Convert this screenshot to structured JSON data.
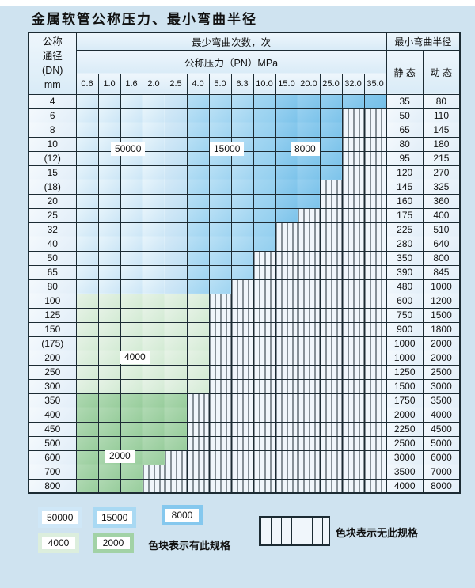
{
  "title": "金属软管公称压力、最小弯曲半径",
  "table": {
    "corner_header_lines": [
      "公称",
      "通径",
      "(DN)",
      "mm"
    ],
    "bend_cycles_header": "最少弯曲次数，次",
    "pressure_header": "公称压力（PN）MPa",
    "radius_header": "最小弯曲半径",
    "static_header": "静 态",
    "dynamic_header": "动 态"
  },
  "zone_labels": [
    "50000",
    "15000",
    "8000",
    "4000",
    "2000"
  ],
  "legend": {
    "has_spec_label": "色块表示有此规格",
    "no_spec_label": "色块表示无此规格",
    "chips": [
      {
        "value": "50000",
        "zone": "z50000"
      },
      {
        "value": "15000",
        "zone": "z15000"
      },
      {
        "value": "8000",
        "zone": "z8000"
      },
      {
        "value": "4000",
        "zone": "z4000"
      },
      {
        "value": "2000",
        "zone": "z2000"
      }
    ]
  },
  "colors": {
    "page_bg": "#cfe3f0",
    "grid": "#1c2b33",
    "hatch_bg": "#f0f6fb",
    "blue50000": "#cfe7f7",
    "blue15000": "#a9d9f3",
    "blue8000": "#85c8ee",
    "green4000": "#dceedd",
    "green2000": "#a2d2a6"
  },
  "chart_data": {
    "type": "table",
    "title": "金属软管公称压力、最小弯曲半径",
    "pressure_columns": [
      "0.6",
      "1.0",
      "1.6",
      "2.0",
      "2.5",
      "4.0",
      "5.0",
      "6.3",
      "10.0",
      "15.0",
      "20.0",
      "25.0",
      "32.0",
      "35.0"
    ],
    "blue_zones_by_pn": {
      "50000": [
        "0.6",
        "2.5"
      ],
      "15000": [
        "4.0",
        "10.0"
      ],
      "8000": [
        "15.0",
        "35.0"
      ]
    },
    "band_cycle_values": {
      "blue": "50000/15000/8000 by PN",
      "green4000": "4000",
      "green2000": "2000"
    },
    "rows": [
      {
        "dn": "4",
        "max_pn": "35.0",
        "band": "blue",
        "static": "35",
        "dynamic": "80"
      },
      {
        "dn": "6",
        "max_pn": "25.0",
        "band": "blue",
        "static": "50",
        "dynamic": "110"
      },
      {
        "dn": "8",
        "max_pn": "25.0",
        "band": "blue",
        "static": "65",
        "dynamic": "145"
      },
      {
        "dn": "10",
        "max_pn": "25.0",
        "band": "blue",
        "static": "80",
        "dynamic": "180"
      },
      {
        "dn": "(12)",
        "max_pn": "25.0",
        "band": "blue",
        "static": "95",
        "dynamic": "215"
      },
      {
        "dn": "15",
        "max_pn": "25.0",
        "band": "blue",
        "static": "120",
        "dynamic": "270"
      },
      {
        "dn": "(18)",
        "max_pn": "20.0",
        "band": "blue",
        "static": "145",
        "dynamic": "325"
      },
      {
        "dn": "20",
        "max_pn": "20.0",
        "band": "blue",
        "static": "160",
        "dynamic": "360"
      },
      {
        "dn": "25",
        "max_pn": "15.0",
        "band": "blue",
        "static": "175",
        "dynamic": "400"
      },
      {
        "dn": "32",
        "max_pn": "10.0",
        "band": "blue",
        "static": "225",
        "dynamic": "510"
      },
      {
        "dn": "40",
        "max_pn": "10.0",
        "band": "blue",
        "static": "280",
        "dynamic": "640"
      },
      {
        "dn": "50",
        "max_pn": "6.3",
        "band": "blue",
        "static": "350",
        "dynamic": "800"
      },
      {
        "dn": "65",
        "max_pn": "6.3",
        "band": "blue",
        "static": "390",
        "dynamic": "845"
      },
      {
        "dn": "80",
        "max_pn": "5.0",
        "band": "blue",
        "static": "480",
        "dynamic": "1000"
      },
      {
        "dn": "100",
        "max_pn": "4.0",
        "band": "green4000",
        "static": "600",
        "dynamic": "1200"
      },
      {
        "dn": "125",
        "max_pn": "4.0",
        "band": "green4000",
        "static": "750",
        "dynamic": "1500"
      },
      {
        "dn": "150",
        "max_pn": "4.0",
        "band": "green4000",
        "static": "900",
        "dynamic": "1800"
      },
      {
        "dn": "(175)",
        "max_pn": "4.0",
        "band": "green4000",
        "static": "1000",
        "dynamic": "2000"
      },
      {
        "dn": "200",
        "max_pn": "4.0",
        "band": "green4000",
        "static": "1000",
        "dynamic": "2000"
      },
      {
        "dn": "250",
        "max_pn": "4.0",
        "band": "green4000",
        "static": "1250",
        "dynamic": "2500"
      },
      {
        "dn": "300",
        "max_pn": "4.0",
        "band": "green4000",
        "static": "1500",
        "dynamic": "3000"
      },
      {
        "dn": "350",
        "max_pn": "2.5",
        "band": "green2000",
        "static": "1750",
        "dynamic": "3500"
      },
      {
        "dn": "400",
        "max_pn": "2.5",
        "band": "green2000",
        "static": "2000",
        "dynamic": "4000"
      },
      {
        "dn": "450",
        "max_pn": "2.5",
        "band": "green2000",
        "static": "2250",
        "dynamic": "4500"
      },
      {
        "dn": "500",
        "max_pn": "2.5",
        "band": "green2000",
        "static": "2500",
        "dynamic": "5000"
      },
      {
        "dn": "600",
        "max_pn": "2.0",
        "band": "green2000",
        "static": "3000",
        "dynamic": "6000"
      },
      {
        "dn": "700",
        "max_pn": "1.6",
        "band": "green2000",
        "static": "3500",
        "dynamic": "7000"
      },
      {
        "dn": "800",
        "max_pn": "1.6",
        "band": "green2000",
        "static": "4000",
        "dynamic": "8000"
      }
    ]
  }
}
